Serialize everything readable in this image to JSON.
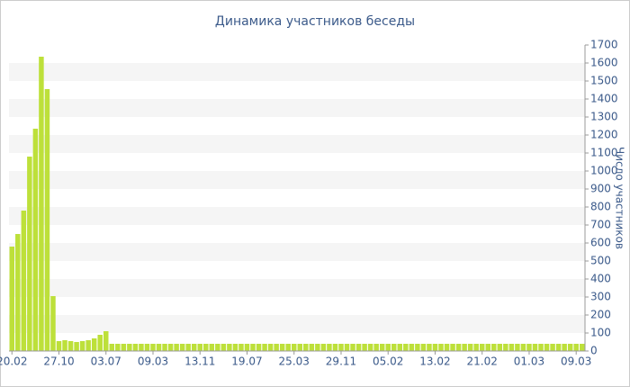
{
  "chart_data": {
    "type": "bar",
    "title": "Динамика участников беседы",
    "y_label": "Число участников",
    "categories": [
      "20.02",
      null,
      null,
      null,
      null,
      null,
      null,
      null,
      "27.10",
      null,
      null,
      null,
      null,
      null,
      null,
      null,
      "03.07",
      null,
      null,
      null,
      null,
      null,
      null,
      null,
      "09.03",
      null,
      null,
      null,
      null,
      null,
      null,
      null,
      "13.11",
      null,
      null,
      null,
      null,
      null,
      null,
      null,
      "19.07",
      null,
      null,
      null,
      null,
      null,
      null,
      null,
      "25.03",
      null,
      null,
      null,
      null,
      null,
      null,
      null,
      "29.11",
      null,
      null,
      null,
      null,
      null,
      null,
      null,
      "05.02",
      null,
      null,
      null,
      null,
      null,
      null,
      null,
      "13.02",
      null,
      null,
      null,
      null,
      null,
      null,
      null,
      "21.02",
      null,
      null,
      null,
      null,
      null,
      null,
      null,
      "01.03",
      null,
      null,
      null,
      null,
      null,
      null,
      null,
      "09.03",
      null
    ],
    "values": [
      580,
      650,
      780,
      1080,
      1235,
      1635,
      1455,
      305,
      55,
      60,
      55,
      50,
      55,
      60,
      70,
      90,
      110,
      40,
      40,
      40,
      40,
      40,
      40,
      40,
      40,
      40,
      40,
      40,
      40,
      40,
      40,
      40,
      40,
      40,
      40,
      40,
      40,
      40,
      40,
      40,
      40,
      40,
      40,
      40,
      40,
      40,
      40,
      40,
      40,
      40,
      40,
      40,
      40,
      40,
      40,
      40,
      40,
      40,
      40,
      40,
      40,
      40,
      40,
      40,
      40,
      40,
      40,
      40,
      40,
      40,
      40,
      40,
      40,
      40,
      40,
      40,
      40,
      40,
      40,
      40,
      40,
      40,
      40,
      40,
      40,
      40,
      40,
      40,
      40,
      40,
      40,
      40,
      40,
      40,
      40,
      40,
      40,
      40
    ],
    "color": "#bde03a",
    "ylim": [
      0,
      1700
    ],
    "yticks": [
      0,
      100,
      200,
      300,
      400,
      500,
      600,
      700,
      800,
      900,
      1000,
      1100,
      1200,
      1300,
      1400,
      1500,
      1600,
      1700
    ],
    "grid": "bands",
    "y_axis_side": "right"
  }
}
